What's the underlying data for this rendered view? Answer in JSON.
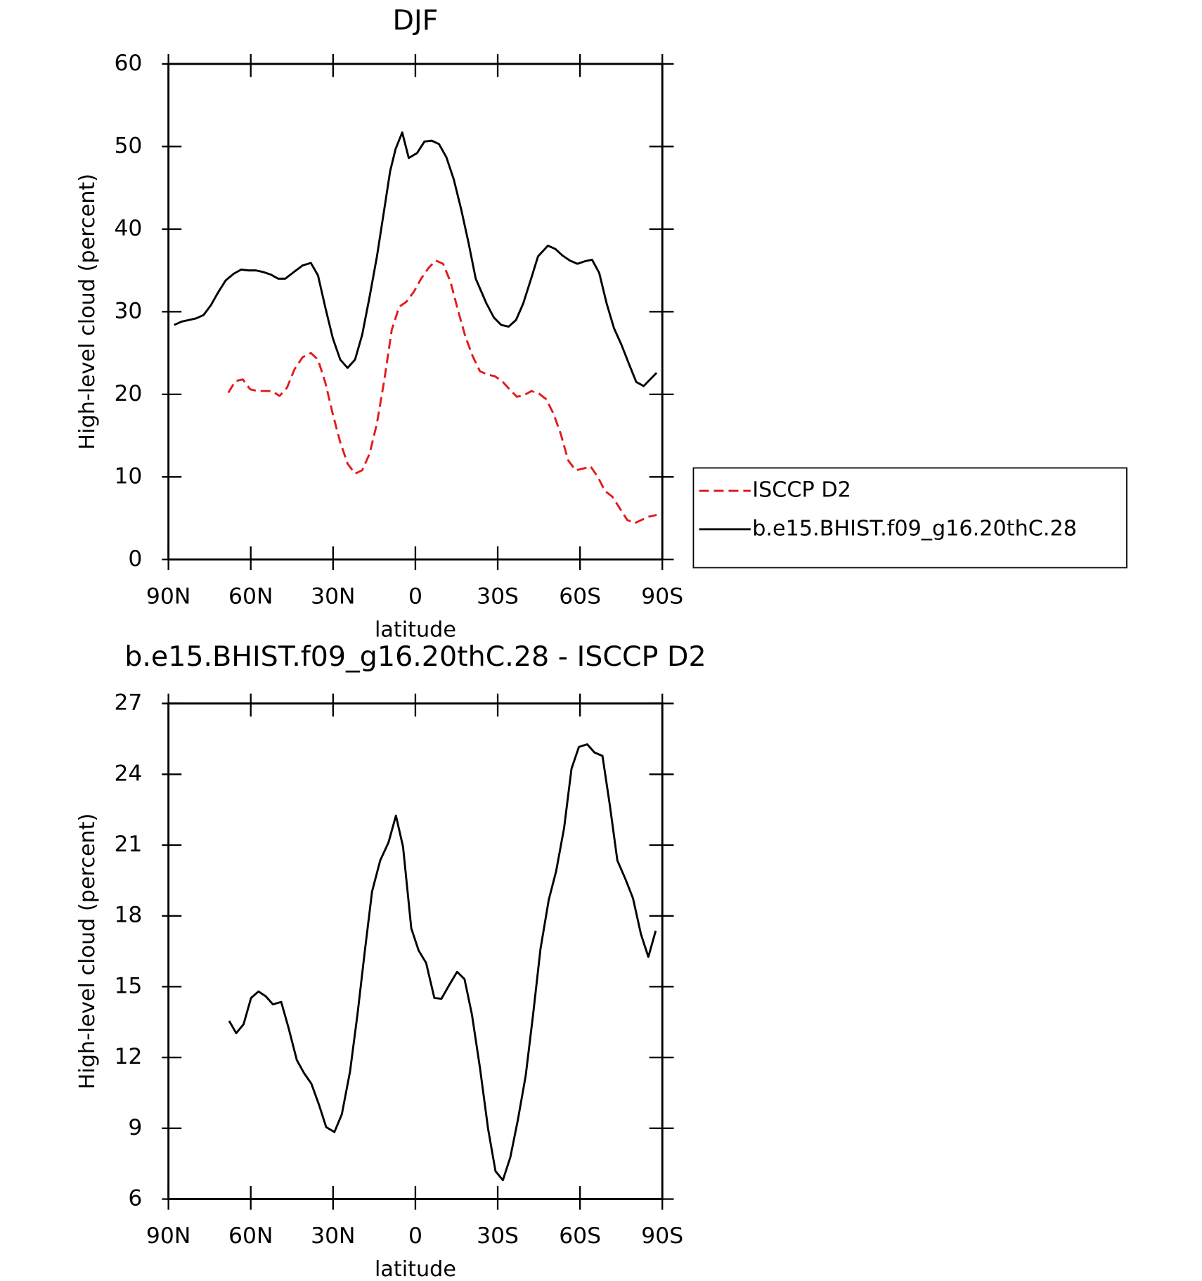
{
  "chart_data": [
    {
      "type": "line",
      "title": "DJF",
      "x_label": "latitude",
      "y_label": "High-level cloud (percent)",
      "xlim": [
        90,
        -90
      ],
      "xticks": [
        {
          "value": 90,
          "label": "90N"
        },
        {
          "value": 60,
          "label": "60N"
        },
        {
          "value": 30,
          "label": "30N"
        },
        0,
        {
          "value": -30,
          "label": "30S"
        },
        {
          "value": -60,
          "label": "60S"
        },
        {
          "value": -90,
          "label": "90S"
        }
      ],
      "ylim": [
        0,
        60
      ],
      "yticks": [
        0,
        10,
        20,
        30,
        40,
        50,
        60
      ],
      "legend": "right",
      "series": [
        {
          "name": "ISCCP D2",
          "color": "#e41a1c",
          "dash": true,
          "x": [
            68.2,
            65.6,
            62.9,
            60.2,
            57.5,
            54.8,
            52.2,
            49.5,
            46.8,
            44.1,
            41.1,
            38.1,
            35.5,
            32.8,
            30.1,
            27.4,
            24.7,
            22.0,
            19.4,
            16.7,
            14.0,
            11.3,
            8.6,
            5.9,
            3.3,
            0.6,
            -2.1,
            -4.8,
            -7.4,
            -10.1,
            -12.8,
            -15.5,
            -18.2,
            -20.9,
            -23.5,
            -26.2,
            -28.9,
            -31.6,
            -34.3,
            -37.0,
            -39.6,
            -42.3,
            -45.0,
            -47.7,
            -50.4,
            -53.0,
            -55.7,
            -58.4,
            -61.1,
            -63.8,
            -66.5,
            -69.1,
            -71.8,
            -74.5,
            -77.2,
            -79.9,
            -82.5,
            -85.2,
            -87.9
          ],
          "values": [
            20.2,
            21.6,
            21.8,
            20.6,
            20.4,
            20.4,
            20.4,
            19.8,
            20.8,
            23.0,
            24.5,
            25.0,
            24.2,
            21.4,
            17.6,
            14.2,
            11.6,
            10.4,
            10.8,
            12.8,
            16.5,
            21.8,
            27.8,
            30.6,
            31.2,
            32.4,
            34.0,
            35.3,
            36.2,
            35.8,
            33.6,
            30.2,
            27.0,
            24.6,
            22.8,
            22.4,
            22.2,
            21.6,
            20.6,
            19.7,
            19.9,
            20.4,
            20.1,
            19.4,
            17.6,
            15.2,
            12.0,
            10.8,
            11.0,
            11.3,
            10.0,
            8.3,
            7.6,
            6.2,
            4.8,
            4.4,
            4.8,
            5.2,
            5.4
          ]
        },
        {
          "name": "b.e15.BHIST.f09_g16.20thC.28",
          "color": "#000000",
          "dash": false,
          "x": [
            87.9,
            85.2,
            82.5,
            79.9,
            77.2,
            74.5,
            71.8,
            69.1,
            66.2,
            63.5,
            60.8,
            58.1,
            55.4,
            52.7,
            50.0,
            47.4,
            44.7,
            41.1,
            38.1,
            35.5,
            32.8,
            30.1,
            27.4,
            24.7,
            22.0,
            19.4,
            16.7,
            14.0,
            11.3,
            9.2,
            7.2,
            4.8,
            2.4,
            -0.6,
            -3.3,
            -6.0,
            -8.6,
            -11.3,
            -14.0,
            -16.7,
            -19.4,
            -22.0,
            -25.9,
            -28.6,
            -31.3,
            -34.0,
            -36.7,
            -39.3,
            -42.0,
            -44.7,
            -48.3,
            -51.0,
            -53.6,
            -56.3,
            -59.0,
            -61.7,
            -64.4,
            -67.0,
            -69.7,
            -72.4,
            -75.1,
            -77.8,
            -80.5,
            -83.2,
            -87.9
          ],
          "values": [
            28.4,
            28.8,
            29.0,
            29.2,
            29.6,
            30.8,
            32.4,
            33.8,
            34.6,
            35.1,
            35.0,
            35.0,
            34.8,
            34.5,
            34.0,
            34.0,
            34.7,
            35.6,
            35.9,
            34.4,
            30.5,
            26.8,
            24.2,
            23.2,
            24.2,
            27.2,
            31.8,
            36.7,
            42.5,
            47.0,
            49.7,
            51.7,
            48.6,
            49.2,
            50.6,
            50.7,
            50.3,
            48.7,
            46.0,
            42.4,
            38.3,
            34.0,
            31.0,
            29.3,
            28.4,
            28.2,
            29.0,
            31.0,
            33.8,
            36.7,
            38.0,
            37.6,
            36.8,
            36.2,
            35.8,
            36.1,
            36.3,
            34.7,
            31.0,
            28.0,
            26.0,
            23.7,
            21.5,
            21.0,
            22.6
          ]
        }
      ]
    },
    {
      "type": "line",
      "title": "b.e15.BHIST.f09_g16.20thC.28 - ISCCP D2",
      "x_label": "latitude",
      "y_label": "High-level cloud (percent)",
      "xlim": [
        90,
        -90
      ],
      "xticks": [
        {
          "value": 90,
          "label": "90N"
        },
        {
          "value": 60,
          "label": "60N"
        },
        {
          "value": 30,
          "label": "30N"
        },
        0,
        {
          "value": -30,
          "label": "30S"
        },
        {
          "value": -60,
          "label": "60S"
        },
        {
          "value": -90,
          "label": "90S"
        }
      ],
      "ylim": [
        6,
        27
      ],
      "yticks": [
        6,
        9,
        12,
        15,
        18,
        21,
        24,
        27
      ],
      "series": [
        {
          "color": "#000000",
          "dash": false,
          "x": [
            67.9,
            65.3,
            62.6,
            59.9,
            57.2,
            54.5,
            51.9,
            48.9,
            46.2,
            43.2,
            40.6,
            37.9,
            35.2,
            32.5,
            29.5,
            26.8,
            23.8,
            21.1,
            18.5,
            15.8,
            12.8,
            9.8,
            7.1,
            4.5,
            1.5,
            -1.2,
            -3.9,
            -6.9,
            -9.5,
            -12.2,
            -15.2,
            -17.9,
            -20.6,
            -23.5,
            -26.5,
            -29.2,
            -31.9,
            -34.6,
            -37.3,
            -40.2,
            -42.9,
            -45.6,
            -48.6,
            -51.3,
            -54.2,
            -56.9,
            -59.6,
            -62.6,
            -65.3,
            -68.2,
            -70.9,
            -73.6,
            -76.6,
            -79.3,
            -82.2,
            -84.9,
            -87.6
          ],
          "values": [
            13.55,
            13.03,
            13.41,
            14.52,
            14.8,
            14.59,
            14.25,
            14.35,
            13.24,
            11.89,
            11.34,
            10.89,
            10.02,
            9.05,
            8.84,
            9.6,
            11.41,
            13.83,
            16.43,
            19.03,
            20.35,
            21.11,
            22.25,
            20.93,
            17.47,
            16.53,
            16.01,
            14.52,
            14.49,
            15.04,
            15.63,
            15.32,
            13.83,
            11.58,
            8.98,
            7.18,
            6.8,
            7.77,
            9.33,
            11.23,
            13.83,
            16.6,
            18.68,
            19.89,
            21.73,
            24.23,
            25.16,
            25.27,
            24.92,
            24.78,
            22.67,
            20.35,
            19.55,
            18.75,
            17.23,
            16.26,
            17.37
          ]
        }
      ]
    }
  ]
}
